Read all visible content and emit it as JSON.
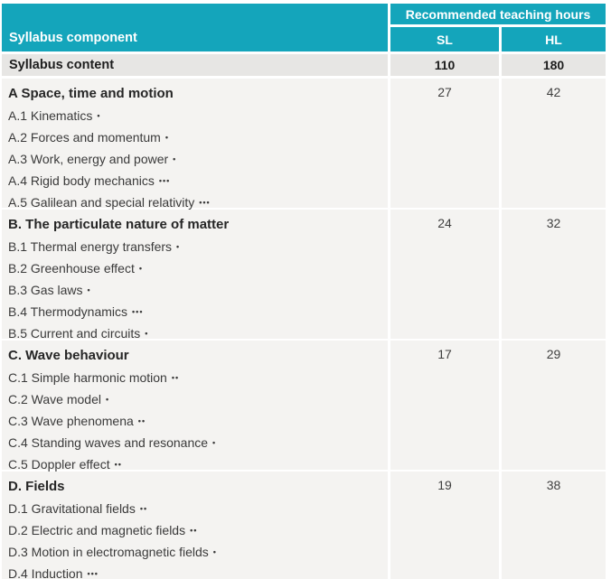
{
  "colors": {
    "teal": "#14a5bb",
    "summary_bg": "#e7e6e4",
    "section_bg": "#f4f3f1",
    "text_dark": "#262626",
    "text_body": "#3a3a3a"
  },
  "table": {
    "header": {
      "component_label": "Syllabus component",
      "hours_label": "Recommended teaching hours",
      "sl_label": "SL",
      "hl_label": "HL"
    },
    "summary": {
      "label": "Syllabus content",
      "sl": "110",
      "hl": "180"
    },
    "sections": [
      {
        "title": "A Space, time and motion",
        "sl": "27",
        "hl": "42",
        "items": [
          {
            "text": "A.1 Kinematics",
            "dots": "•"
          },
          {
            "text": "A.2 Forces and momentum",
            "dots": "•"
          },
          {
            "text": "A.3 Work, energy and power",
            "dots": "•"
          },
          {
            "text": "A.4 Rigid body mechanics",
            "dots": "•••"
          },
          {
            "text": "A.5 Galilean and special relativity",
            "dots": "•••"
          }
        ]
      },
      {
        "title": "B. The particulate nature of matter",
        "sl": "24",
        "hl": "32",
        "items": [
          {
            "text": "B.1 Thermal energy transfers",
            "dots": "•"
          },
          {
            "text": "B.2 Greenhouse effect",
            "dots": "•"
          },
          {
            "text": "B.3 Gas laws",
            "dots": "•"
          },
          {
            "text": "B.4 Thermodynamics",
            "dots": "•••"
          },
          {
            "text": "B.5 Current and circuits",
            "dots": "•"
          }
        ]
      },
      {
        "title": "C. Wave behaviour",
        "sl": "17",
        "hl": "29",
        "items": [
          {
            "text": "C.1 Simple harmonic motion",
            "dots": "••"
          },
          {
            "text": "C.2 Wave model",
            "dots": "•"
          },
          {
            "text": "C.3 Wave phenomena",
            "dots": "••"
          },
          {
            "text": "C.4 Standing waves and resonance",
            "dots": "•"
          },
          {
            "text": "C.5 Doppler effect",
            "dots": "••"
          }
        ]
      },
      {
        "title": "D. Fields",
        "sl": "19",
        "hl": "38",
        "items": [
          {
            "text": "D.1 Gravitational fields",
            "dots": "••"
          },
          {
            "text": "D.2 Electric and magnetic fields",
            "dots": "••"
          },
          {
            "text": "D.3 Motion in electromagnetic fields",
            "dots": "•"
          },
          {
            "text": "D.4 Induction",
            "dots": "•••"
          }
        ]
      }
    ]
  }
}
